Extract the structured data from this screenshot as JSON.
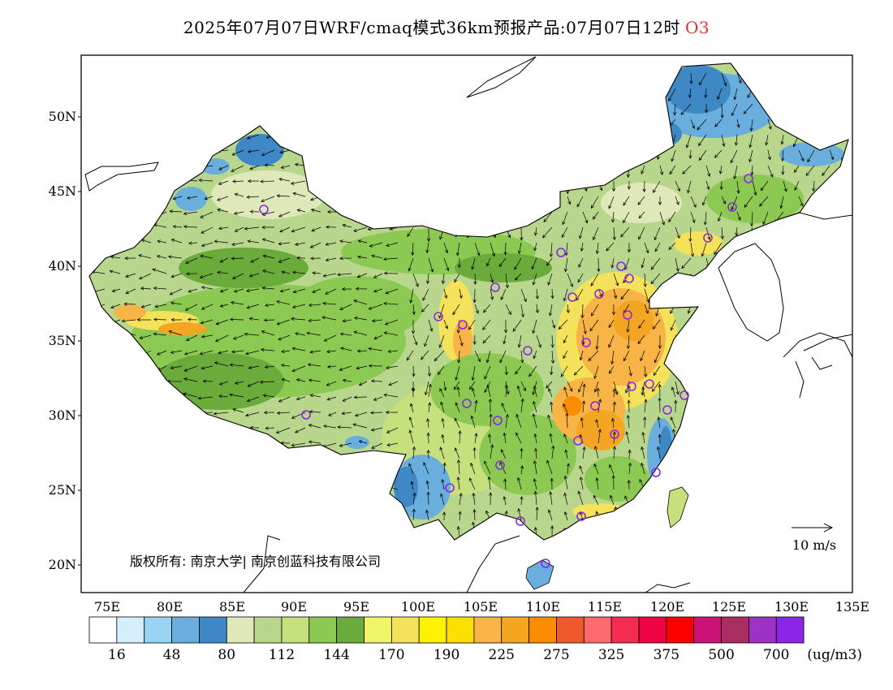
{
  "title": {
    "text": "2025年07月07日WRF/cmaq模式36km预报产品:07月07日12时",
    "pollutant": "O3",
    "pollutant_color": "#e03030"
  },
  "map": {
    "lat_labels": [
      "50N",
      "45N",
      "40N",
      "35N",
      "30N",
      "25N",
      "20N"
    ],
    "lon_labels": [
      "75E",
      "80E",
      "85E",
      "90E",
      "95E",
      "100E",
      "105E",
      "110E",
      "115E",
      "120E",
      "125E",
      "130E",
      "135E"
    ],
    "copyright": "版权所有: 南京大学| 南京创蓝科技有限公司",
    "wind_scale": "10 m/s"
  },
  "colorbar": {
    "colors": [
      "#ffffff",
      "#d4eefb",
      "#9ad4f4",
      "#6aaede",
      "#3e88c6",
      "#dfe8b8",
      "#b8d68c",
      "#c6e07e",
      "#8cc952",
      "#6aab3c",
      "#f0f66a",
      "#f4e35a",
      "#fff200",
      "#fce000",
      "#f8b446",
      "#f4a623",
      "#fa8c00",
      "#ee5a2c",
      "#fe6a6e",
      "#f42c52",
      "#ee0444",
      "#fc0000",
      "#cc1478",
      "#aa2e60",
      "#9e32c6",
      "#8c26e6"
    ],
    "labels": [
      "16",
      "48",
      "80",
      "112",
      "144",
      "170",
      "190",
      "225",
      "275",
      "325",
      "375",
      "500",
      "700"
    ],
    "unit": "(ug/m3)"
  }
}
